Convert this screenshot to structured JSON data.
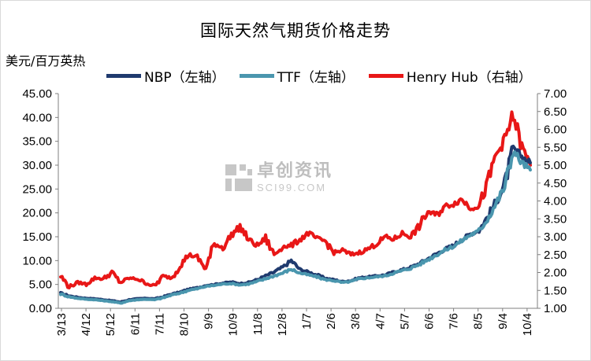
{
  "chart_data": {
    "type": "line",
    "title": "国际天然气期货价格走势",
    "ylabel_left": "美元/百万英热",
    "y_left_ticks": [
      "45.00",
      "40.00",
      "35.00",
      "30.00",
      "25.00",
      "20.00",
      "15.00",
      "10.00",
      "5.00",
      "0.00"
    ],
    "y_right_ticks": [
      "7.00",
      "6.50",
      "6.00",
      "5.50",
      "5.00",
      "4.50",
      "4.00",
      "3.50",
      "3.00",
      "2.50",
      "2.00",
      "1.50",
      "1.00"
    ],
    "ylim_left": [
      0,
      45
    ],
    "ylim_right": [
      1,
      7
    ],
    "x_ticks": [
      "3/13",
      "4/12",
      "5/12",
      "6/11",
      "7/11",
      "8/10",
      "9/9",
      "10/9",
      "11/8",
      "12/8",
      "1/7",
      "2/6",
      "3/8",
      "4/7",
      "5/7",
      "6/6",
      "7/6",
      "8/5",
      "9/4",
      "10/4"
    ],
    "legend_placement": "top",
    "series": [
      {
        "name": "NBP（左轴）",
        "axis": "left",
        "color": "#1f3a6e",
        "values": [
          3.2,
          2.6,
          2.3,
          2.1,
          2.0,
          1.8,
          1.6,
          1.3,
          1.8,
          2.0,
          2.1,
          2.0,
          2.4,
          3.0,
          3.4,
          4.0,
          4.3,
          4.8,
          5.0,
          5.3,
          5.5,
          5.2,
          5.4,
          6.0,
          6.8,
          7.6,
          8.6,
          10.0,
          8.2,
          7.6,
          7.0,
          6.3,
          6.0,
          5.6,
          5.8,
          6.4,
          6.6,
          6.8,
          7.0,
          7.6,
          8.1,
          8.6,
          9.4,
          10.4,
          11.4,
          12.4,
          13.2,
          14.4,
          15.6,
          16.4,
          19.2,
          22.4,
          26.0,
          33.5,
          31.8,
          30.5
        ]
      },
      {
        "name": "TTF（左轴）",
        "axis": "left",
        "color": "#4a96ae",
        "values": [
          3.0,
          2.4,
          2.1,
          1.9,
          1.8,
          1.6,
          1.4,
          1.1,
          1.6,
          1.8,
          1.9,
          1.8,
          2.2,
          2.8,
          3.2,
          3.8,
          4.1,
          4.6,
          4.8,
          5.1,
          5.2,
          4.9,
          5.1,
          5.6,
          6.2,
          6.8,
          7.4,
          8.2,
          7.4,
          7.0,
          6.6,
          6.0,
          5.8,
          5.4,
          5.6,
          6.2,
          6.4,
          6.6,
          6.8,
          7.4,
          7.9,
          8.4,
          9.2,
          10.2,
          11.2,
          12.2,
          13.0,
          14.2,
          15.4,
          16.2,
          18.8,
          22.0,
          25.5,
          33.0,
          30.5,
          29.0
        ]
      },
      {
        "name": "Henry Hub（右轴）",
        "axis": "right",
        "color": "#e81717",
        "values": [
          1.9,
          1.6,
          1.72,
          1.68,
          1.85,
          1.82,
          2.0,
          1.72,
          1.84,
          1.82,
          1.7,
          1.62,
          1.9,
          1.85,
          2.2,
          2.5,
          2.42,
          2.1,
          2.8,
          2.7,
          3.05,
          3.28,
          2.92,
          2.75,
          2.95,
          2.5,
          2.72,
          2.75,
          2.92,
          3.1,
          2.95,
          2.88,
          2.55,
          2.62,
          2.5,
          2.56,
          2.66,
          2.8,
          3.0,
          2.92,
          3.1,
          3.0,
          3.3,
          3.7,
          3.6,
          3.85,
          3.92,
          4.05,
          3.8,
          3.85,
          4.5,
          5.3,
          5.7,
          6.4,
          5.5,
          5.0
        ]
      }
    ]
  },
  "watermark": {
    "cn": "卓创资讯",
    "en": "SCI99.COM"
  }
}
